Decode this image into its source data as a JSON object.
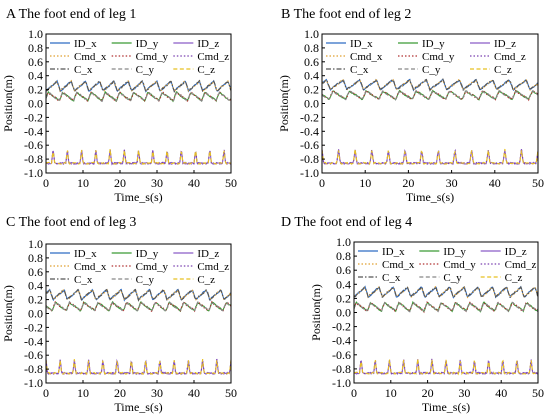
{
  "chart_data": [
    {
      "type": "line",
      "panel_letter": "A",
      "title": "The foot end of leg 1",
      "xlabel": "Time_s(s)",
      "ylabel": "Position(m)",
      "xlim": [
        0,
        50
      ],
      "ylim": [
        -1.0,
        1.0
      ],
      "xticks": [
        "0",
        "10",
        "20",
        "30",
        "40",
        "50"
      ],
      "yticks": [
        "1.0",
        "0.8",
        "0.6",
        "0.4",
        "0.2",
        "0.0",
        "-0.2",
        "-0.4",
        "-0.6",
        "-0.8",
        "-1.0"
      ],
      "grid": false,
      "legend_position": "top",
      "period_s": 3.85,
      "phase_s": 0.0,
      "series": [
        {
          "name": "ID_x",
          "color": "#2f6cc4",
          "dash": "solid",
          "base": 0.18,
          "amplitude": 0.14
        },
        {
          "name": "ID_y",
          "color": "#3a9a35",
          "dash": "solid",
          "base": 0.04,
          "amplitude": 0.12
        },
        {
          "name": "ID_z",
          "color": "#8a5cc8",
          "dash": "solid",
          "base": -0.86,
          "amplitude": 0.2
        },
        {
          "name": "Cmd_x",
          "color": "#e0a030",
          "dash": "dot",
          "base": 0.18,
          "amplitude": 0.14
        },
        {
          "name": "Cmd_y",
          "color": "#b03030",
          "dash": "dot",
          "base": 0.04,
          "amplitude": 0.12
        },
        {
          "name": "Cmd_z",
          "color": "#7a40b0",
          "dash": "dot",
          "base": -0.86,
          "amplitude": 0.2
        },
        {
          "name": "C_x",
          "color": "#555555",
          "dash": "dashdot",
          "base": 0.18,
          "amplitude": 0.14
        },
        {
          "name": "C_y",
          "color": "#888888",
          "dash": "dash",
          "base": 0.04,
          "amplitude": 0.12
        },
        {
          "name": "C_z",
          "color": "#e8c020",
          "dash": "dash",
          "base": -0.86,
          "amplitude": 0.2
        }
      ]
    },
    {
      "type": "line",
      "panel_letter": "B",
      "title": "The foot end of leg 2",
      "xlabel": "Time_s(s)",
      "ylabel": "Position(m)",
      "xlim": [
        0,
        50
      ],
      "ylim": [
        -1.0,
        1.0
      ],
      "xticks": [
        "0",
        "10",
        "20",
        "30",
        "40",
        "50"
      ],
      "yticks": [
        "1.0",
        "0.8",
        "0.6",
        "0.4",
        "0.2",
        "0.0",
        "-0.2",
        "-0.4",
        "-0.6",
        "-0.8",
        "-1.0"
      ],
      "grid": false,
      "legend_position": "top",
      "period_s": 3.85,
      "phase_s": 1.9,
      "series": [
        {
          "name": "ID_x",
          "color": "#2f6cc4",
          "dash": "solid",
          "base": 0.2,
          "amplitude": 0.14
        },
        {
          "name": "ID_y",
          "color": "#3a9a35",
          "dash": "solid",
          "base": 0.06,
          "amplitude": 0.12
        },
        {
          "name": "ID_z",
          "color": "#8a5cc8",
          "dash": "solid",
          "base": -0.86,
          "amplitude": 0.2
        },
        {
          "name": "Cmd_x",
          "color": "#e0a030",
          "dash": "dot",
          "base": 0.2,
          "amplitude": 0.14
        },
        {
          "name": "Cmd_y",
          "color": "#b03030",
          "dash": "dot",
          "base": 0.06,
          "amplitude": 0.12
        },
        {
          "name": "Cmd_z",
          "color": "#7a40b0",
          "dash": "dot",
          "base": -0.86,
          "amplitude": 0.2
        },
        {
          "name": "C_x",
          "color": "#555555",
          "dash": "dashdot",
          "base": 0.2,
          "amplitude": 0.14
        },
        {
          "name": "C_y",
          "color": "#888888",
          "dash": "dash",
          "base": 0.06,
          "amplitude": 0.12
        },
        {
          "name": "C_z",
          "color": "#e8c020",
          "dash": "dash",
          "base": -0.86,
          "amplitude": 0.2
        }
      ]
    },
    {
      "type": "line",
      "panel_letter": "C",
      "title": "The foot end of leg 3",
      "xlabel": "Time_s(s)",
      "ylabel": "Position(m)",
      "xlim": [
        0,
        50
      ],
      "ylim": [
        -1.0,
        1.0
      ],
      "xticks": [
        "0",
        "10",
        "20",
        "30",
        "40",
        "50"
      ],
      "yticks": [
        "1.0",
        "0.8",
        "0.6",
        "0.4",
        "0.2",
        "0.0",
        "-0.2",
        "-0.4",
        "-0.6",
        "-0.8",
        "-1.0"
      ],
      "grid": false,
      "legend_position": "top",
      "period_s": 3.85,
      "phase_s": 1.9,
      "series": [
        {
          "name": "ID_x",
          "color": "#2f6cc4",
          "dash": "solid",
          "base": 0.2,
          "amplitude": 0.14
        },
        {
          "name": "ID_y",
          "color": "#3a9a35",
          "dash": "solid",
          "base": 0.04,
          "amplitude": 0.12
        },
        {
          "name": "ID_z",
          "color": "#8a5cc8",
          "dash": "solid",
          "base": -0.86,
          "amplitude": 0.2
        },
        {
          "name": "Cmd_x",
          "color": "#e0a030",
          "dash": "dot",
          "base": 0.2,
          "amplitude": 0.14
        },
        {
          "name": "Cmd_y",
          "color": "#b03030",
          "dash": "dot",
          "base": 0.04,
          "amplitude": 0.12
        },
        {
          "name": "Cmd_z",
          "color": "#7a40b0",
          "dash": "dot",
          "base": -0.86,
          "amplitude": 0.2
        },
        {
          "name": "C_x",
          "color": "#555555",
          "dash": "dashdot",
          "base": 0.2,
          "amplitude": 0.14
        },
        {
          "name": "C_y",
          "color": "#888888",
          "dash": "dash",
          "base": 0.04,
          "amplitude": 0.12
        },
        {
          "name": "C_z",
          "color": "#e8c020",
          "dash": "dash",
          "base": -0.86,
          "amplitude": 0.2
        }
      ]
    },
    {
      "type": "line",
      "panel_letter": "D",
      "title": "The foot end of leg 4",
      "xlabel": "Time_s(s)",
      "ylabel": "Position(m)",
      "xlim": [
        0,
        50
      ],
      "ylim": [
        -1.0,
        1.0
      ],
      "xticks": [
        "0",
        "10",
        "20",
        "30",
        "40",
        "50"
      ],
      "yticks": [
        "1.0",
        "0.8",
        "0.6",
        "0.4",
        "0.2",
        "0.0",
        "-0.2",
        "-0.4",
        "-0.6",
        "-0.8",
        "-1.0"
      ],
      "grid": false,
      "legend_position": "top",
      "period_s": 3.85,
      "phase_s": 0.0,
      "series": [
        {
          "name": "ID_x",
          "color": "#2f6cc4",
          "dash": "solid",
          "base": 0.22,
          "amplitude": 0.14
        },
        {
          "name": "ID_y",
          "color": "#3a9a35",
          "dash": "solid",
          "base": 0.02,
          "amplitude": 0.12
        },
        {
          "name": "ID_z",
          "color": "#8a5cc8",
          "dash": "solid",
          "base": -0.86,
          "amplitude": 0.2
        },
        {
          "name": "Cmd_x",
          "color": "#e0a030",
          "dash": "dot",
          "base": 0.22,
          "amplitude": 0.14
        },
        {
          "name": "Cmd_y",
          "color": "#b03030",
          "dash": "dot",
          "base": 0.02,
          "amplitude": 0.12
        },
        {
          "name": "Cmd_z",
          "color": "#7a40b0",
          "dash": "dot",
          "base": -0.86,
          "amplitude": 0.2
        },
        {
          "name": "C_x",
          "color": "#555555",
          "dash": "dashdot",
          "base": 0.22,
          "amplitude": 0.14
        },
        {
          "name": "C_y",
          "color": "#888888",
          "dash": "dash",
          "base": 0.02,
          "amplitude": 0.12
        },
        {
          "name": "C_z",
          "color": "#e8c020",
          "dash": "dash",
          "base": -0.86,
          "amplitude": 0.2
        }
      ]
    }
  ]
}
